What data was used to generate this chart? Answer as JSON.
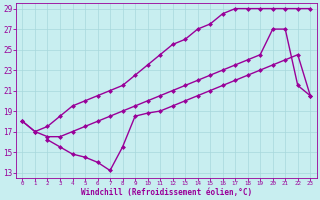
{
  "line1_x": [
    0,
    1,
    2,
    3,
    4,
    5,
    6,
    7,
    8,
    9,
    10,
    11,
    12,
    13,
    14,
    15,
    16,
    17,
    18,
    19,
    20,
    21,
    22,
    23
  ],
  "line1_y": [
    18.0,
    17.0,
    17.5,
    18.5,
    19.5,
    20.0,
    20.5,
    21.0,
    21.5,
    22.5,
    23.5,
    24.5,
    25.5,
    26.0,
    27.0,
    27.5,
    28.5,
    29.0,
    29.0,
    29.0,
    29.0,
    29.0,
    29.0,
    29.0
  ],
  "line2_x": [
    0,
    1,
    2,
    3,
    4,
    5,
    6,
    7,
    8,
    9,
    10,
    11,
    12,
    13,
    14,
    15,
    16,
    17,
    18,
    19,
    20,
    21,
    22,
    23
  ],
  "line2_y": [
    18.0,
    17.0,
    16.5,
    16.5,
    17.0,
    17.5,
    18.0,
    18.5,
    19.0,
    19.5,
    20.0,
    20.5,
    21.0,
    21.5,
    22.0,
    22.5,
    23.0,
    23.5,
    24.0,
    24.5,
    27.0,
    27.0,
    21.5,
    20.5
  ],
  "line3_x": [
    2,
    3,
    4,
    5,
    6,
    7,
    8,
    9,
    10,
    11,
    12,
    13,
    14,
    15,
    16,
    17,
    18,
    19,
    20,
    21,
    22,
    23
  ],
  "line3_y": [
    16.2,
    15.5,
    14.8,
    14.5,
    14.0,
    13.2,
    15.5,
    18.5,
    18.8,
    19.0,
    19.5,
    20.0,
    20.5,
    21.0,
    21.5,
    22.0,
    22.5,
    23.0,
    23.5,
    24.0,
    24.5,
    20.5
  ],
  "color": "#990099",
  "bg_color": "#c8eef0",
  "grid_color": "#a8d8dc",
  "xlabel": "Windchill (Refroidissement éolien,°C)",
  "xlim": [
    -0.5,
    23.5
  ],
  "ylim": [
    12.5,
    29.5
  ],
  "yticks": [
    13,
    15,
    17,
    19,
    21,
    23,
    25,
    27,
    29
  ],
  "xticks": [
    0,
    1,
    2,
    3,
    4,
    5,
    6,
    7,
    8,
    9,
    10,
    11,
    12,
    13,
    14,
    15,
    16,
    17,
    18,
    19,
    20,
    21,
    22,
    23
  ],
  "markersize": 2.5,
  "linewidth": 1.0
}
